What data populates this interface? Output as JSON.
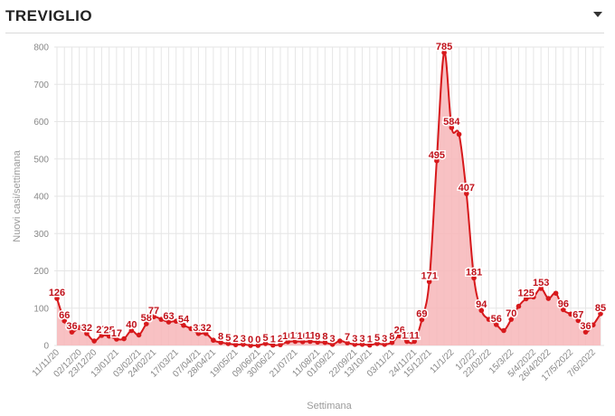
{
  "header": {
    "title": "TREVIGLIO"
  },
  "colors": {
    "line": "#d7191c",
    "fill": "#f7b6b8",
    "grid": "#e6e6e6",
    "label": "#c0121b"
  },
  "chart_data": {
    "type": "area",
    "xlabel": "Settimana",
    "ylabel": "Nuovi casi/settimana",
    "ylim": [
      0,
      800
    ],
    "yticks": [
      0,
      100,
      200,
      300,
      400,
      500,
      600,
      700,
      800
    ],
    "grid": true,
    "x_tick_labels": [
      "11/11/20",
      "02/12/20",
      "23/12/20",
      "13/01/21",
      "03/02/21",
      "24/02/21",
      "17/03/21",
      "07/04/21",
      "28/04/21",
      "19/05/21",
      "09/06/21",
      "30/06/21",
      "21/07/21",
      "11/08/21",
      "01/09/21",
      "22/09/21",
      "13/10/21",
      "03/11/21",
      "24/11/21",
      "15/12/21",
      "11/1/22",
      "1/2/22",
      "22/02/22",
      "15/3/22",
      "5/4/2022",
      "26/4/2022",
      "17/5/2022",
      "7/6/2022"
    ],
    "series": [
      {
        "values": [
          126,
          66,
          36,
          48,
          32,
          12,
          27,
          25,
          17,
          18,
          40,
          28,
          58,
          77,
          70,
          63,
          65,
          54,
          45,
          32,
          32,
          14,
          8,
          5,
          2,
          3,
          0,
          0,
          5,
          1,
          2,
          10,
          11,
          10,
          11,
          9,
          8,
          3,
          12,
          7,
          3,
          3,
          1,
          5,
          3,
          8,
          26,
          11,
          11,
          69,
          171,
          495,
          785,
          584,
          566,
          407,
          181,
          94,
          70,
          56,
          40,
          70,
          105,
          125,
          130,
          153,
          126,
          140,
          96,
          84,
          67,
          36,
          55,
          85
        ]
      }
    ],
    "data_labels": [
      {
        "i": 0,
        "t": "126"
      },
      {
        "i": 1,
        "t": "66"
      },
      {
        "i": 2,
        "t": "36"
      },
      {
        "i": 4,
        "t": "32"
      },
      {
        "i": 6,
        "t": "27"
      },
      {
        "i": 7,
        "t": "25"
      },
      {
        "i": 8,
        "t": "17"
      },
      {
        "i": 10,
        "t": "40"
      },
      {
        "i": 12,
        "t": "58"
      },
      {
        "i": 13,
        "t": "77"
      },
      {
        "i": 15,
        "t": "63"
      },
      {
        "i": 17,
        "t": "54"
      },
      {
        "i": 19,
        "t": "32"
      },
      {
        "i": 20,
        "t": "32"
      },
      {
        "i": 22,
        "t": "8"
      },
      {
        "i": 23,
        "t": "5"
      },
      {
        "i": 24,
        "t": "2"
      },
      {
        "i": 25,
        "t": "3"
      },
      {
        "i": 26,
        "t": "0"
      },
      {
        "i": 27,
        "t": "0"
      },
      {
        "i": 28,
        "t": "5"
      },
      {
        "i": 29,
        "t": "1"
      },
      {
        "i": 30,
        "t": "2"
      },
      {
        "i": 31,
        "t": "10"
      },
      {
        "i": 32,
        "t": "11"
      },
      {
        "i": 33,
        "t": "10"
      },
      {
        "i": 34,
        "t": "11"
      },
      {
        "i": 35,
        "t": "9"
      },
      {
        "i": 36,
        "t": "8"
      },
      {
        "i": 37,
        "t": "3"
      },
      {
        "i": 39,
        "t": "7"
      },
      {
        "i": 40,
        "t": "3"
      },
      {
        "i": 41,
        "t": "3"
      },
      {
        "i": 42,
        "t": "1"
      },
      {
        "i": 43,
        "t": "5"
      },
      {
        "i": 44,
        "t": "3"
      },
      {
        "i": 45,
        "t": "8"
      },
      {
        "i": 46,
        "t": "26"
      },
      {
        "i": 47,
        "t": "11"
      },
      {
        "i": 48,
        "t": "11"
      },
      {
        "i": 49,
        "t": "69"
      },
      {
        "i": 50,
        "t": "171"
      },
      {
        "i": 51,
        "t": "495"
      },
      {
        "i": 52,
        "t": "785"
      },
      {
        "i": 53,
        "t": "584"
      },
      {
        "i": 55,
        "t": "407"
      },
      {
        "i": 56,
        "t": "181"
      },
      {
        "i": 57,
        "t": "94"
      },
      {
        "i": 59,
        "t": "56"
      },
      {
        "i": 61,
        "t": "70"
      },
      {
        "i": 63,
        "t": "125"
      },
      {
        "i": 65,
        "t": "153"
      },
      {
        "i": 68,
        "t": "96"
      },
      {
        "i": 70,
        "t": "67"
      },
      {
        "i": 71,
        "t": "36"
      },
      {
        "i": 73,
        "t": "85"
      }
    ]
  }
}
